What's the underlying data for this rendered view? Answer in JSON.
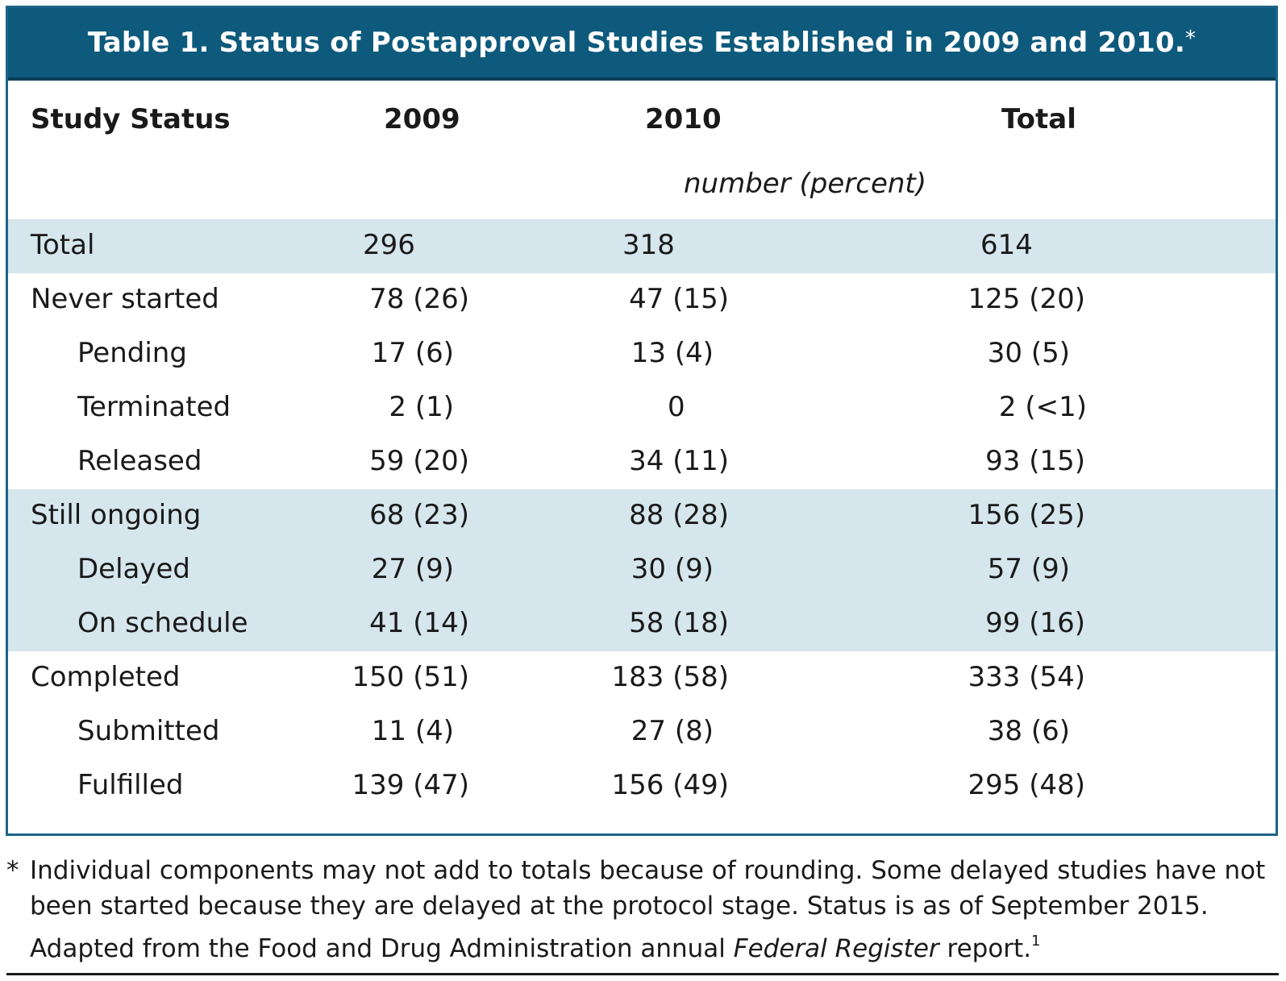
{
  "title": "Table 1. Status of Postapproval Studies Established in 2009 and 2010.",
  "title_marker": "*",
  "columns": {
    "status": "Study Status",
    "y2009": "2009",
    "y2010": "2010",
    "total": "Total"
  },
  "units": "number (percent)",
  "rows": [
    {
      "label": "Total",
      "y2009": "296",
      "y2010": "318",
      "total": "614"
    },
    {
      "label": "Never started",
      "y2009": "78 (26)",
      "y2010": "47 (15)",
      "total": "125 (20)"
    },
    {
      "label": "Pending",
      "y2009": "17 (6)",
      "y2010": "13 (4)",
      "total": "30 (5)"
    },
    {
      "label": "Terminated",
      "y2009": "2 (1)",
      "y2010": "0",
      "total": "2 (<1)"
    },
    {
      "label": "Released",
      "y2009": "59 (20)",
      "y2010": "34 (11)",
      "total": "93 (15)"
    },
    {
      "label": "Still ongoing",
      "y2009": "68 (23)",
      "y2010": "88 (28)",
      "total": "156 (25)"
    },
    {
      "label": "Delayed",
      "y2009": "27 (9)",
      "y2010": "30 (9)",
      "total": "57 (9)"
    },
    {
      "label": "On schedule",
      "y2009": "41 (14)",
      "y2010": "58 (18)",
      "total": "99 (16)"
    },
    {
      "label": "Completed",
      "y2009": "150 (51)",
      "y2010": "183 (58)",
      "total": "333 (54)"
    },
    {
      "label": "Submitted",
      "y2009": "11 (4)",
      "y2010": "27 (8)",
      "total": "38 (6)"
    },
    {
      "label": "Fulfilled",
      "y2009": "139 (47)",
      "y2010": "156 (49)",
      "total": "295 (48)"
    }
  ],
  "footnote": {
    "marker": "*",
    "text_before_italic": "Individual components may not add to totals because of rounding. Some delayed studies have not been started because they are delayed at the protocol stage. Status is as of September 2015. Adapted from the Food and Drug Administration annual ",
    "italic": "Federal Register",
    "text_after_italic": " report.",
    "reference": "1"
  }
}
